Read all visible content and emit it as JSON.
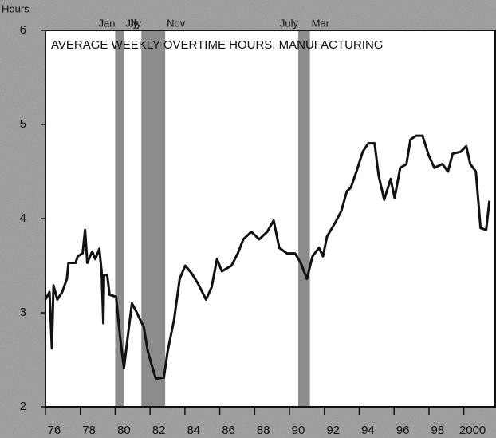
{
  "chart_data": {
    "type": "line",
    "title": "AVERAGE WEEKLY OVERTIME HOURS, MANUFACTURING",
    "y_label": "Hours",
    "x": [
      1976.0,
      1976.23,
      1976.37,
      1976.46,
      1976.68,
      1976.96,
      1977.23,
      1977.32,
      1977.73,
      1977.85,
      1978.13,
      1978.27,
      1978.4,
      1978.68,
      1978.86,
      1979.09,
      1979.22,
      1979.32,
      1979.36,
      1979.54,
      1979.68,
      1980.05,
      1980.27,
      1980.5,
      1980.73,
      1980.96,
      1981.19,
      1981.42,
      1981.64,
      1981.87,
      1982.1,
      1982.33,
      1982.79,
      1983.01,
      1983.38,
      1983.7,
      1984.02,
      1984.38,
      1984.75,
      1985.21,
      1985.53,
      1985.84,
      1986.12,
      1986.67,
      1987.03,
      1987.35,
      1987.81,
      1988.26,
      1988.72,
      1989.09,
      1989.41,
      1989.86,
      1990.32,
      1990.64,
      1991.0,
      1991.32,
      1991.69,
      1991.92,
      1992.15,
      1992.6,
      1992.97,
      1993.29,
      1993.52,
      1993.84,
      1994.2,
      1994.52,
      1994.88,
      1995.11,
      1995.43,
      1995.8,
      1996.03,
      1996.35,
      1996.71,
      1996.94,
      1997.26,
      1997.63,
      1997.99,
      1998.31,
      1998.77,
      1999.09,
      1999.36,
      1999.82,
      2000.14,
      2000.37,
      2000.69,
      2000.96,
      2001.28,
      2001.47
    ],
    "series": [
      {
        "color": "#111111",
        "values": [
          3.14,
          3.22,
          2.62,
          3.29,
          3.14,
          3.22,
          3.36,
          3.53,
          3.53,
          3.6,
          3.63,
          3.88,
          3.53,
          3.65,
          3.57,
          3.68,
          3.44,
          2.89,
          3.4,
          3.4,
          3.19,
          3.17,
          2.76,
          2.41,
          2.76,
          3.1,
          3.02,
          2.93,
          2.85,
          2.59,
          2.44,
          2.3,
          2.31,
          2.59,
          2.93,
          3.36,
          3.5,
          3.42,
          3.31,
          3.14,
          3.27,
          3.57,
          3.44,
          3.5,
          3.63,
          3.78,
          3.86,
          3.78,
          3.86,
          3.98,
          3.69,
          3.63,
          3.63,
          3.53,
          3.36,
          3.6,
          3.69,
          3.6,
          3.81,
          3.95,
          4.08,
          4.29,
          4.33,
          4.5,
          4.71,
          4.8,
          4.8,
          4.46,
          4.2,
          4.42,
          4.22,
          4.54,
          4.58,
          4.84,
          4.88,
          4.88,
          4.67,
          4.54,
          4.58,
          4.5,
          4.69,
          4.71,
          4.77,
          4.58,
          4.5,
          3.9,
          3.88,
          4.19
        ]
      }
    ],
    "xlim": [
      1976,
      2001.8
    ],
    "ylim": [
      2,
      6
    ],
    "yticks": [
      2,
      3,
      4,
      5,
      6
    ],
    "xticks": [
      {
        "value": 1976,
        "label": "76"
      },
      {
        "value": 1978,
        "label": "78"
      },
      {
        "value": 1980,
        "label": "80"
      },
      {
        "value": 1982,
        "label": "82"
      },
      {
        "value": 1984,
        "label": "84"
      },
      {
        "value": 1986,
        "label": "86"
      },
      {
        "value": 1988,
        "label": "88"
      },
      {
        "value": 1990,
        "label": "90"
      },
      {
        "value": 1992,
        "label": "92"
      },
      {
        "value": 1994,
        "label": "94"
      },
      {
        "value": 1996,
        "label": "96"
      },
      {
        "value": 1998,
        "label": "98"
      },
      {
        "value": 2000,
        "label": "2000"
      }
    ],
    "recessions": [
      {
        "start": 1980.0,
        "end": 1980.5,
        "start_label": "Jan",
        "end_label": "Jly"
      },
      {
        "start": 1981.5,
        "end": 1982.87,
        "start_label": "Jly",
        "end_label": "Nov"
      },
      {
        "start": 1990.5,
        "end": 1991.17,
        "start_label": "July",
        "end_label": "Mar"
      }
    ],
    "recession_color": "#8c8c8c"
  }
}
